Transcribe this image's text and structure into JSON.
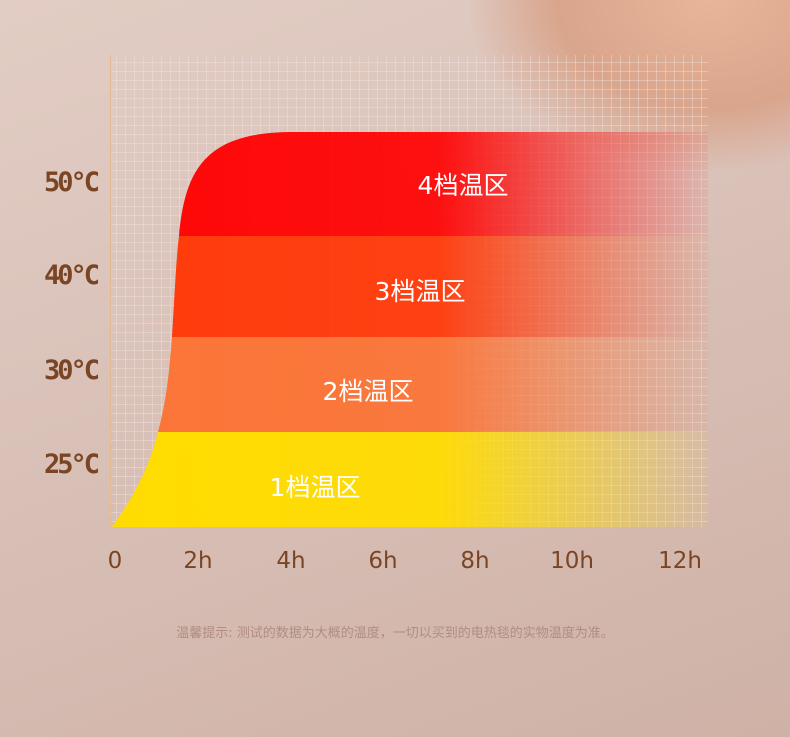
{
  "chart_data": {
    "type": "area",
    "x_ticks": [
      "0",
      "2h",
      "4h",
      "6h",
      "8h",
      "10h",
      "12h"
    ],
    "y_ticks": [
      "25°C",
      "30°C",
      "40°C",
      "50°C"
    ],
    "bands": [
      {
        "label": "1档温区",
        "temp": "25°C",
        "color": "#ffdc00"
      },
      {
        "label": "2档温区",
        "temp": "30°C",
        "color": "#fb7437"
      },
      {
        "label": "3档温区",
        "temp": "40°C",
        "color": "#ff3a0a"
      },
      {
        "label": "4档温区",
        "temp": "50°C",
        "color": "#fe0606"
      }
    ],
    "grid": true
  },
  "note": "温馨提示: 测试的数据为大概的温度，一切以买到的电热毯的实物温度为准。"
}
